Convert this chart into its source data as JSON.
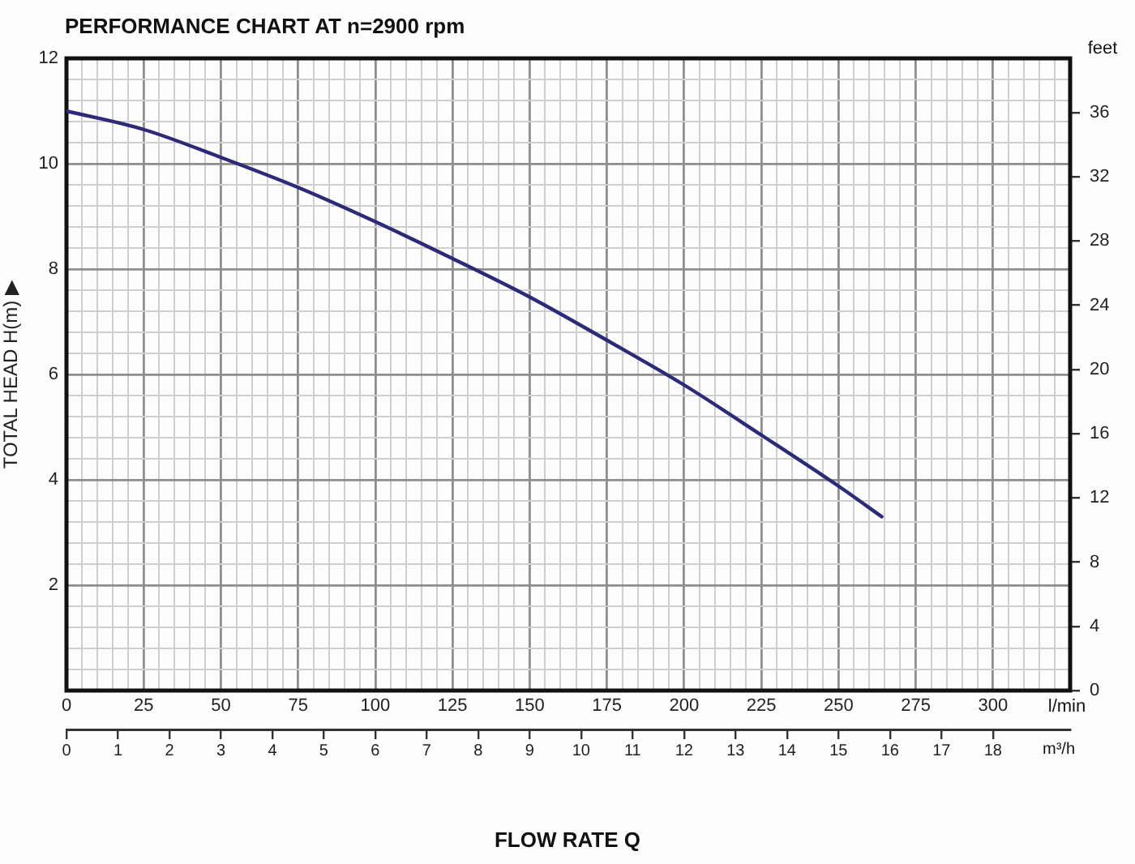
{
  "chart_data": {
    "type": "line",
    "title": "PERFORMANCE CHART AT n=2900 rpm",
    "xlabel": "l/min",
    "x2label": "m³/h",
    "ylabel": "TOTAL HEAD H(m) ▶",
    "y2label": "feet",
    "annotations": [
      "FLOW RATE Q"
    ],
    "x": [
      0,
      25,
      50,
      75,
      100,
      125,
      150,
      175,
      200,
      225,
      250,
      264
    ],
    "series": [
      {
        "color": "#2b2b78",
        "values": [
          11.0,
          10.65,
          10.12,
          9.55,
          8.9,
          8.2,
          7.47,
          6.65,
          5.8,
          4.85,
          3.88,
          3.3
        ]
      }
    ],
    "xlim": [
      0,
      325
    ],
    "xticks": [
      0,
      {
        "value": 5,
        "label": null
      },
      {
        "value": 10,
        "label": null
      },
      {
        "value": 15,
        "label": null
      },
      {
        "value": 20,
        "label": null
      },
      25,
      {
        "value": 30,
        "label": null
      },
      {
        "value": 35,
        "label": null
      },
      {
        "value": 40,
        "label": null
      },
      {
        "value": 45,
        "label": null
      },
      50,
      {
        "value": 55,
        "label": null
      },
      {
        "value": 60,
        "label": null
      },
      {
        "value": 65,
        "label": null
      },
      {
        "value": 70,
        "label": null
      },
      75,
      {
        "value": 80,
        "label": null
      },
      {
        "value": 85,
        "label": null
      },
      {
        "value": 90,
        "label": null
      },
      {
        "value": 95,
        "label": null
      },
      100,
      {
        "value": 105,
        "label": null
      },
      {
        "value": 110,
        "label": null
      },
      {
        "value": 115,
        "label": null
      },
      {
        "value": 120,
        "label": null
      },
      125,
      {
        "value": 130,
        "label": null
      },
      {
        "value": 135,
        "label": null
      },
      {
        "value": 140,
        "label": null
      },
      {
        "value": 145,
        "label": null
      },
      150,
      {
        "value": 155,
        "label": null
      },
      {
        "value": 160,
        "label": null
      },
      {
        "value": 165,
        "label": null
      },
      {
        "value": 170,
        "label": null
      },
      175,
      {
        "value": 180,
        "label": null
      },
      {
        "value": 185,
        "label": null
      },
      {
        "value": 190,
        "label": null
      },
      {
        "value": 195,
        "label": null
      },
      200,
      {
        "value": 205,
        "label": null
      },
      {
        "value": 210,
        "label": null
      },
      {
        "value": 215,
        "label": null
      },
      {
        "value": 220,
        "label": null
      },
      225,
      {
        "value": 230,
        "label": null
      },
      {
        "value": 235,
        "label": null
      },
      {
        "value": 240,
        "label": null
      },
      {
        "value": 245,
        "label": null
      },
      250,
      {
        "value": 255,
        "label": null
      },
      {
        "value": 260,
        "label": null
      },
      {
        "value": 265,
        "label": null
      },
      {
        "value": 270,
        "label": null
      },
      275,
      {
        "value": 280,
        "label": null
      },
      {
        "value": 285,
        "label": null
      },
      {
        "value": 290,
        "label": null
      },
      {
        "value": 295,
        "label": null
      },
      300,
      {
        "value": 305,
        "label": null
      },
      {
        "value": 310,
        "label": null
      },
      {
        "value": 315,
        "label": null
      },
      {
        "value": 320,
        "label": null
      }
    ],
    "ylim": [
      0,
      12
    ],
    "yticks": [
      {
        "value": 0,
        "label": null
      },
      {
        "value": 0.4,
        "label": null
      },
      {
        "value": 0.8,
        "label": null
      },
      {
        "value": 1.2,
        "label": null
      },
      {
        "value": 1.6,
        "label": null
      },
      2,
      {
        "value": 2.4,
        "label": null
      },
      {
        "value": 2.8,
        "label": null
      },
      {
        "value": 3.2,
        "label": null
      },
      {
        "value": 3.6,
        "label": null
      },
      4,
      {
        "value": 4.4,
        "label": null
      },
      {
        "value": 4.8,
        "label": null
      },
      {
        "value": 5.2,
        "label": null
      },
      {
        "value": 5.6,
        "label": null
      },
      6,
      {
        "value": 6.4,
        "label": null
      },
      {
        "value": 6.8,
        "label": null
      },
      {
        "value": 7.2,
        "label": null
      },
      {
        "value": 7.6,
        "label": null
      },
      8,
      {
        "value": 8.4,
        "label": null
      },
      {
        "value": 8.8,
        "label": null
      },
      {
        "value": 9.2,
        "label": null
      },
      {
        "value": 9.6,
        "label": null
      },
      10,
      {
        "value": 10.4,
        "label": null
      },
      {
        "value": 10.8,
        "label": null
      },
      {
        "value": 11.2,
        "label": null
      },
      {
        "value": 11.6,
        "label": null
      },
      12
    ],
    "y2lim": [
      0,
      39.37
    ],
    "y2ticks": [
      0,
      4,
      8,
      12,
      16,
      20,
      24,
      28,
      32,
      36
    ],
    "x2lim": [
      0,
      19.5
    ],
    "x2ticks": [
      0,
      1,
      2,
      3,
      4,
      5,
      6,
      7,
      8,
      9,
      10,
      11,
      12,
      13,
      14,
      15,
      16,
      17,
      18
    ],
    "grid": true,
    "marker": "none",
    "line_style": "solid"
  }
}
